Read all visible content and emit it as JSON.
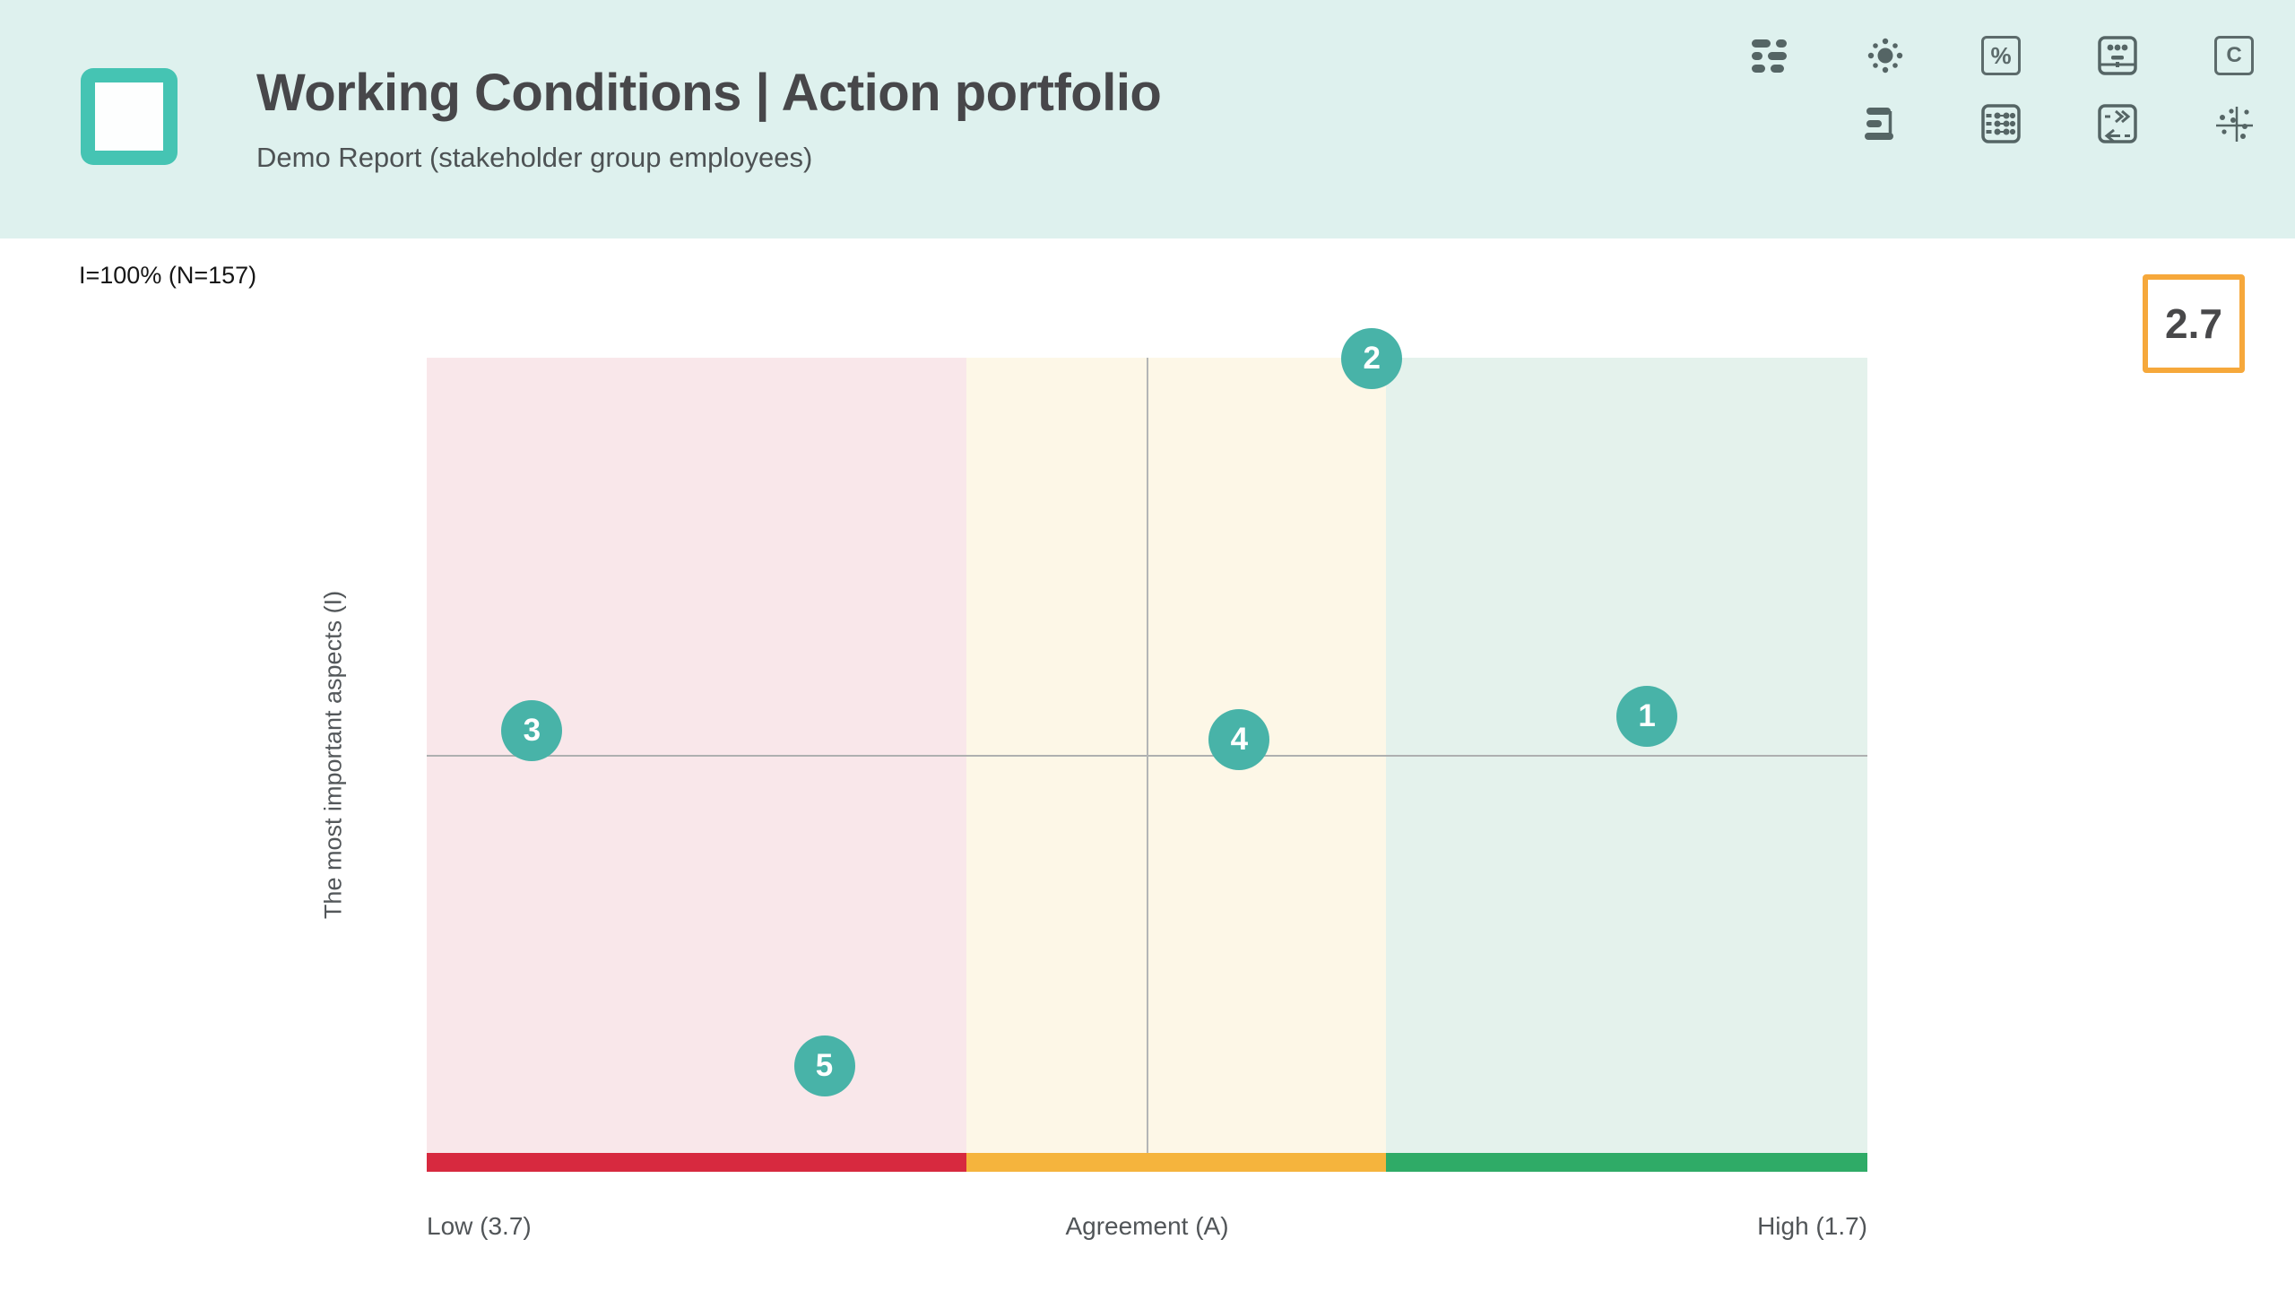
{
  "app": {
    "title": "Working Conditions | Action portfolio",
    "subtitle": "Demo Report (stakeholder group employees)",
    "header_bg": "#def1ee",
    "accent_teal": "#45c4b3"
  },
  "toolbar": {
    "icons_row1": [
      "legend-matrix-icon",
      "sun-icon",
      "percent-icon",
      "presentation-icon",
      "c-block-icon"
    ],
    "icons_row2": [
      "horizontal-bars-icon",
      "abacus-grid-icon",
      "swap-arrows-icon",
      "scatter-plot-icon"
    ],
    "percent_label": "%",
    "c_label": "C"
  },
  "meta": {
    "sample_label": "I=100% (N=157)"
  },
  "score_badge": {
    "value": "2.7",
    "border_color": "#f6a83b"
  },
  "chart_data": {
    "type": "scatter",
    "title": "Working Conditions | Action portfolio",
    "x_axis": {
      "label": "Agreement (A)",
      "min_label": "Low (3.7)",
      "max_label": "High (1.7)",
      "axis_min": 3.7,
      "axis_max": 1.7,
      "reversed": true,
      "reference_line_value": 2.7
    },
    "y_axis": {
      "label": "The most important aspects (I)",
      "midline_pct": 50
    },
    "zones": [
      {
        "name": "low",
        "strip_color": "#d7293f",
        "band_color": "#f9e7ea",
        "x_start_pct": 0,
        "x_end_pct": 37.5
      },
      {
        "name": "mid",
        "strip_color": "#f5b43d",
        "band_color": "#fdf7e7",
        "x_start_pct": 37.5,
        "x_end_pct": 66.6
      },
      {
        "name": "high",
        "strip_color": "#2fab67",
        "band_color": "#e4f2ec",
        "x_start_pct": 66.6,
        "x_end_pct": 100
      }
    ],
    "marker_color": "#48b3a8",
    "points": [
      {
        "label": "1",
        "x_pct": 84.7,
        "y_pct": 45.1,
        "agreement_est": 2.0
      },
      {
        "label": "2",
        "x_pct": 65.6,
        "y_pct": 0.1,
        "agreement_est": 2.4
      },
      {
        "label": "3",
        "x_pct": 7.3,
        "y_pct": 46.9,
        "agreement_est": 3.55
      },
      {
        "label": "4",
        "x_pct": 56.4,
        "y_pct": 48.0,
        "agreement_est": 2.55
      },
      {
        "label": "5",
        "x_pct": 27.6,
        "y_pct": 89.1,
        "agreement_est": 3.15
      }
    ],
    "grid": false,
    "legend": false
  }
}
